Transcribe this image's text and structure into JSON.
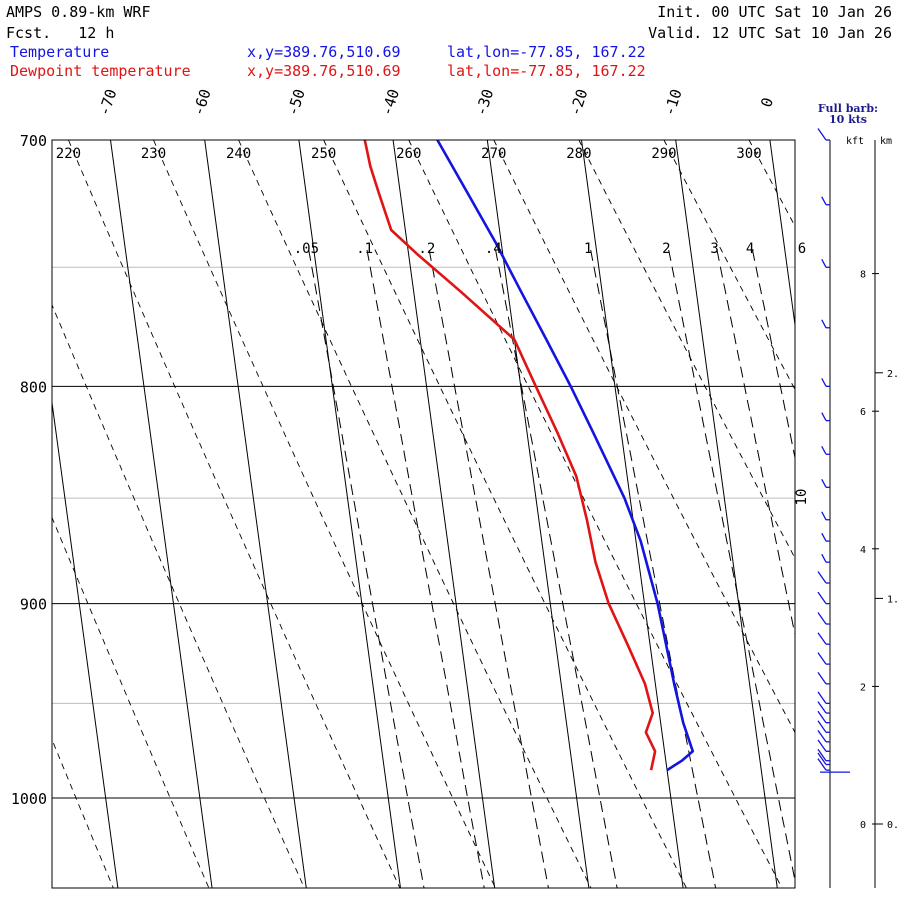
{
  "header": {
    "model": "AMPS 0.89-km WRF",
    "fcst_label": "Fcst.",
    "fcst_value": "12 h",
    "init_label": "Init.",
    "init_value": "00 UTC Sat 10 Jan 26",
    "valid_label": "Valid.",
    "valid_value": "12 UTC Sat 10 Jan 26"
  },
  "legend": [
    {
      "name": "Temperature",
      "xy": "x,y=389.76,510.69",
      "latlon": "lat,lon=-77.85, 167.22",
      "color": "#1414e0"
    },
    {
      "name": "Dewpoint temperature",
      "xy": "x,y=389.76,510.69",
      "latlon": "lat,lon=-77.85, 167.22",
      "color": "#e01414"
    }
  ],
  "barb_note": {
    "line1": "Full barb:",
    "line2": "10 kts"
  },
  "chart_data": {
    "type": "line",
    "diagram": "skew-T log-p",
    "pressure_ticks": [
      700,
      800,
      900,
      1000
    ],
    "pressure_gridlines_light": [
      750,
      850,
      950
    ],
    "plim": [
      1050,
      700
    ],
    "isotherm_labels": [
      "-70",
      "-60",
      "-50",
      "-40",
      "-30",
      "-20",
      "-10",
      "0"
    ],
    "isotherm_values": [
      -70,
      -60,
      -50,
      -40,
      -30,
      -20,
      -10,
      0
    ],
    "theta_labels": [
      "220",
      "230",
      "240",
      "250",
      "260",
      "270",
      "280",
      "290",
      "300"
    ],
    "mixing_ratio_labels": [
      ".05",
      ".1",
      ".2",
      ".4",
      "1",
      "2",
      "3",
      "4",
      "6"
    ],
    "mixing_ratio_values": [
      0.05,
      0.1,
      0.2,
      0.4,
      1,
      2,
      3,
      4,
      6
    ],
    "series": [
      {
        "name": "Temperature",
        "color": "#1414e0",
        "points": [
          {
            "p": 985,
            "t": -20.0
          },
          {
            "p": 980,
            "t": -18.3
          },
          {
            "p": 975,
            "t": -17.0
          },
          {
            "p": 960,
            "t": -17.6
          },
          {
            "p": 940,
            "t": -18.0
          },
          {
            "p": 920,
            "t": -18.3
          },
          {
            "p": 900,
            "t": -18.6
          },
          {
            "p": 870,
            "t": -19.5
          },
          {
            "p": 850,
            "t": -20.6
          },
          {
            "p": 820,
            "t": -23.0
          },
          {
            "p": 800,
            "t": -24.7
          },
          {
            "p": 780,
            "t": -26.6
          },
          {
            "p": 760,
            "t": -28.6
          },
          {
            "p": 740,
            "t": -30.6
          },
          {
            "p": 720,
            "t": -32.9
          },
          {
            "p": 700,
            "t": -35.3
          }
        ]
      },
      {
        "name": "Dewpoint temperature",
        "color": "#e01414",
        "points": [
          {
            "p": 985,
            "t": -21.7
          },
          {
            "p": 975,
            "t": -21.0
          },
          {
            "p": 965,
            "t": -21.7
          },
          {
            "p": 955,
            "t": -20.7
          },
          {
            "p": 940,
            "t": -21.1
          },
          {
            "p": 920,
            "t": -22.4
          },
          {
            "p": 900,
            "t": -23.8
          },
          {
            "p": 880,
            "t": -24.6
          },
          {
            "p": 860,
            "t": -24.9
          },
          {
            "p": 840,
            "t": -25.4
          },
          {
            "p": 820,
            "t": -26.8
          },
          {
            "p": 800,
            "t": -28.4
          },
          {
            "p": 780,
            "t": -30.0
          },
          {
            "p": 760,
            "t": -35.0
          },
          {
            "p": 745,
            "t": -39.0
          },
          {
            "p": 735,
            "t": -41.5
          },
          {
            "p": 720,
            "t": -42.3
          },
          {
            "p": 710,
            "t": -42.8
          },
          {
            "p": 700,
            "t": -43.0
          }
        ]
      }
    ],
    "wind_barbs": {
      "color": "#1414e0",
      "full_barb_kts": 10,
      "speeds_kts": [
        10,
        5,
        5,
        5,
        5,
        5,
        5,
        5,
        5,
        5,
        5,
        10,
        10,
        10,
        10,
        10,
        10,
        10,
        10,
        10,
        10,
        10,
        10,
        10,
        10,
        10
      ],
      "pressures_hpa": [
        700,
        725,
        750,
        775,
        800,
        815,
        830,
        845,
        860,
        870,
        880,
        890,
        900,
        910,
        920,
        930,
        940,
        950,
        955,
        960,
        965,
        970,
        975,
        980,
        982,
        985
      ]
    },
    "height_axis": {
      "kft_label": "kft",
      "km_label": "km",
      "kft_ticks": [
        "8",
        "6",
        "4",
        "2",
        "0"
      ],
      "kft_values": [
        8,
        6,
        4,
        2,
        0
      ],
      "km_ticks": [
        "2.",
        "1.",
        "0."
      ],
      "km_values": [
        2,
        1,
        0
      ],
      "side_label": "10"
    }
  }
}
